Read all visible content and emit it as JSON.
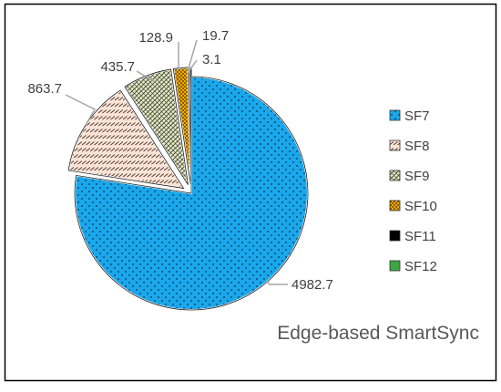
{
  "chart_data": {
    "type": "pie",
    "title": "Edge-based SmartSync",
    "categories": [
      "SF7",
      "SF8",
      "SF9",
      "SF10",
      "SF11",
      "SF12"
    ],
    "values": [
      4982.7,
      863.7,
      435.7,
      128.9,
      19.7,
      3.1
    ],
    "data_labels": [
      "4982.7",
      "863.7",
      "435.7",
      "128.9",
      "19.7",
      "3.1"
    ],
    "colors": [
      "#1aa7ec",
      "#fbe3d6",
      "#e6ebc6",
      "#f2a900",
      "#000000",
      "#3da643"
    ],
    "legend_placement": "right",
    "exploded": [
      "SF8",
      "SF9",
      "SF10",
      "SF11",
      "SF12"
    ],
    "frame": "box"
  }
}
